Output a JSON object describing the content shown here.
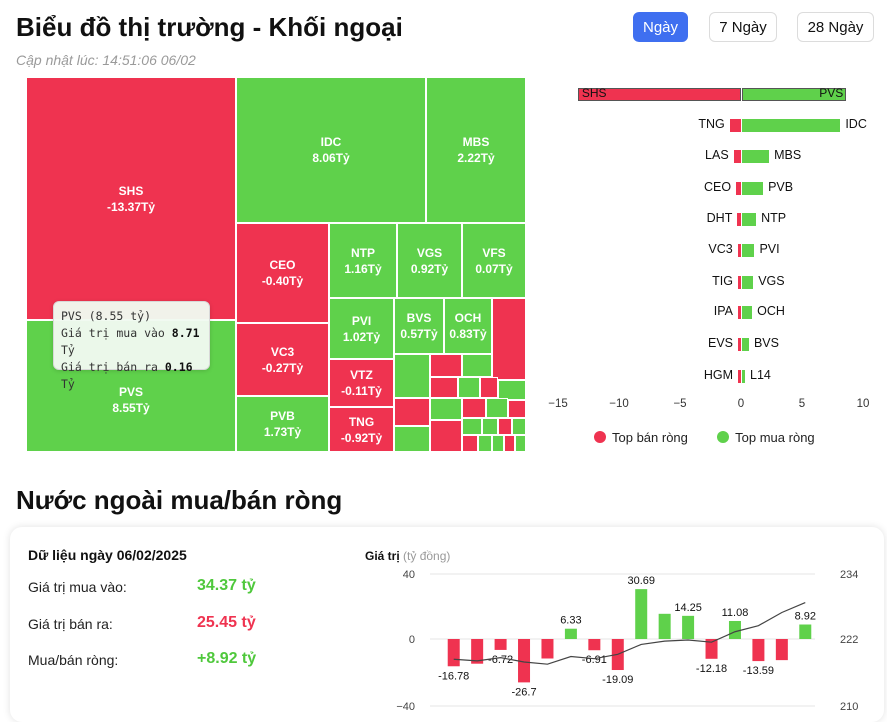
{
  "header": {
    "title": "Biểu đồ thị trường - Khối ngoại",
    "updated": "Cập nhật lúc: 14:51:06 06/02",
    "range_buttons": [
      "Ngày",
      "7 Ngày",
      "28 Ngày"
    ],
    "active_range": "Ngày"
  },
  "treemap": {
    "tiles": [
      {
        "name": "SHS",
        "value": "-13.37Tỷ",
        "side": "sell"
      },
      {
        "name": "PVS",
        "value": "8.55Tỷ",
        "side": "buy"
      },
      {
        "name": "IDC",
        "value": "8.06Tỷ",
        "side": "buy"
      },
      {
        "name": "MBS",
        "value": "2.22Tỷ",
        "side": "buy"
      },
      {
        "name": "CEO",
        "value": "-0.40Tỷ",
        "side": "sell"
      },
      {
        "name": "NTP",
        "value": "1.16Tỷ",
        "side": "buy"
      },
      {
        "name": "VGS",
        "value": "0.92Tỷ",
        "side": "buy"
      },
      {
        "name": "VFS",
        "value": "0.07Tỷ",
        "side": "buy"
      },
      {
        "name": "PVI",
        "value": "1.02Tỷ",
        "side": "buy"
      },
      {
        "name": "BVS",
        "value": "0.57Tỷ",
        "side": "buy"
      },
      {
        "name": "OCH",
        "value": "0.83Tỷ",
        "side": "buy"
      },
      {
        "name": "VC3",
        "value": "-0.27Tỷ",
        "side": "sell"
      },
      {
        "name": "VTZ",
        "value": "-0.11Tỷ",
        "side": "sell"
      },
      {
        "name": "PVB",
        "value": "1.73Tỷ",
        "side": "buy"
      },
      {
        "name": "TNG",
        "value": "-0.92Tỷ",
        "side": "sell"
      }
    ],
    "tooltip": {
      "title": "PVS (8.55 tỷ)",
      "buy_label": "Giá trị mua vào",
      "buy_value": "8.71",
      "sell_label": "Giá trị bán ra",
      "sell_value": "0.16",
      "unit": "Tỷ"
    }
  },
  "net_bars": {
    "axis_ticks": [
      "−15",
      "−10",
      "−5",
      "0",
      "5",
      "10"
    ],
    "rows": [
      {
        "sell": "SHS",
        "sell_val": -13.37,
        "buy": "PVS",
        "buy_val": 8.55
      },
      {
        "sell": "TNG",
        "sell_val": -0.92,
        "buy": "IDC",
        "buy_val": 8.06
      },
      {
        "sell": "LAS",
        "sell_val": -0.6,
        "buy": "MBS",
        "buy_val": 2.22
      },
      {
        "sell": "CEO",
        "sell_val": -0.4,
        "buy": "PVB",
        "buy_val": 1.73
      },
      {
        "sell": "DHT",
        "sell_val": -0.3,
        "buy": "NTP",
        "buy_val": 1.16
      },
      {
        "sell": "VC3",
        "sell_val": -0.27,
        "buy": "PVI",
        "buy_val": 1.02
      },
      {
        "sell": "TIG",
        "sell_val": -0.2,
        "buy": "VGS",
        "buy_val": 0.92
      },
      {
        "sell": "IPA",
        "sell_val": -0.15,
        "buy": "OCH",
        "buy_val": 0.83
      },
      {
        "sell": "EVS",
        "sell_val": -0.12,
        "buy": "BVS",
        "buy_val": 0.57
      },
      {
        "sell": "HGM",
        "sell_val": -0.1,
        "buy": "L14",
        "buy_val": 0.1
      }
    ],
    "legend_sell": "Top bán ròng",
    "legend_buy": "Top mua ròng",
    "colors": {
      "sell": "#ef3350",
      "buy": "#5fd14b"
    }
  },
  "foreign": {
    "section_title": "Nước ngoài mua/bán ròng",
    "date_label": "Dữ liệu ngày 06/02/2025",
    "buy_label": "Giá trị mua vào:",
    "buy_value": "34.37 tỷ",
    "sell_label": "Giá trị bán ra:",
    "sell_value": "25.45 tỷ",
    "net_label": "Mua/bán ròng:",
    "net_value": "+8.92 tỷ"
  },
  "chart_data": {
    "type": "bar",
    "ylabel": "Giá trị",
    "yunit": "(tỷ đồng)",
    "left_ticks": [
      "40",
      "0",
      "−40"
    ],
    "right_ticks": [
      "234",
      "222",
      "210"
    ],
    "ylim": [
      -40,
      40
    ],
    "y2lim": [
      210,
      234
    ],
    "values": [
      -16.78,
      -15.2,
      -6.72,
      -26.7,
      -12.0,
      6.33,
      -6.91,
      -19.09,
      30.69,
      15.5,
      14.25,
      -12.18,
      11.08,
      -13.59,
      -13.0,
      8.92
    ],
    "labels": [
      "-16.78",
      "",
      "-6.72",
      "-26.7",
      "",
      "6.33",
      "-6.91",
      "-19.09",
      "30.69",
      "",
      "14.25",
      "-12.18",
      "11.08",
      "-13.59",
      "",
      "8.92"
    ],
    "line": [
      218.5,
      218.2,
      218.8,
      218.0,
      217.6,
      219.0,
      218.6,
      219.4,
      221.2,
      221.8,
      222.0,
      221.6,
      223.5,
      224.6,
      227.0,
      228.8
    ],
    "colors": {
      "up": "#5fd14b",
      "down": "#ef3350",
      "line": "#444444"
    }
  }
}
